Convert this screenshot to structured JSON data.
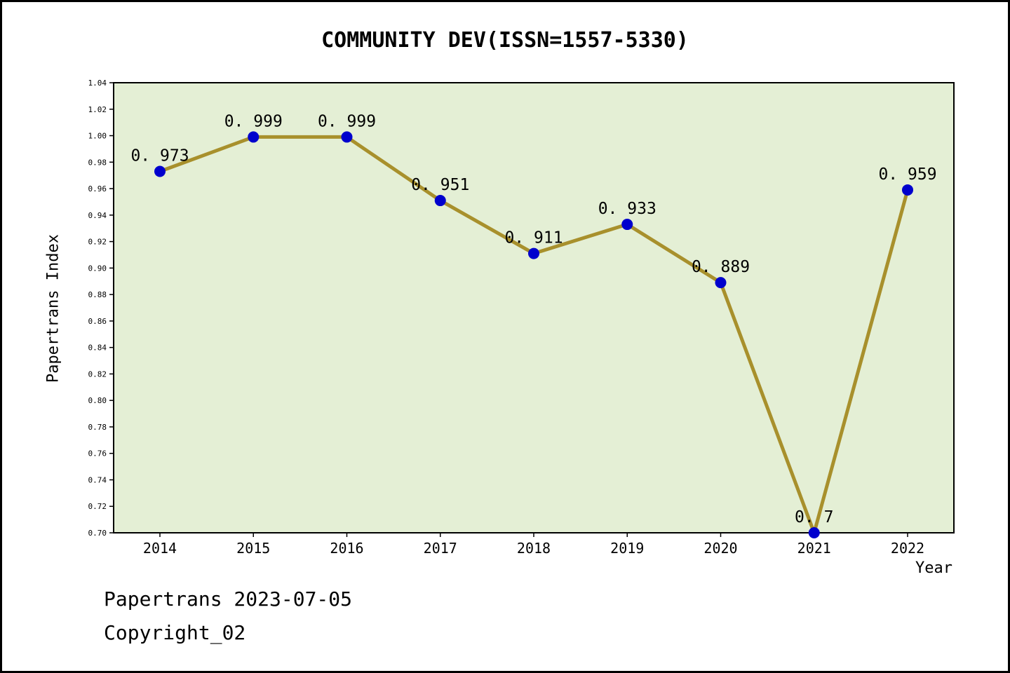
{
  "title": "COMMUNITY DEV(ISSN=1557-5330)",
  "footer": {
    "line1": "Papertrans 2023-07-05",
    "line2": "Copyright_02"
  },
  "chart_data": {
    "type": "line",
    "title": "COMMUNITY DEV(ISSN=1557-5330)",
    "xlabel": "Year",
    "ylabel": "Papertrans Index",
    "categories": [
      "2014",
      "2015",
      "2016",
      "2017",
      "2018",
      "2019",
      "2020",
      "2021",
      "2022"
    ],
    "values": [
      0.973,
      0.999,
      0.999,
      0.951,
      0.911,
      0.933,
      0.889,
      0.7,
      0.959
    ],
    "point_labels": [
      "0. 973",
      "0. 999",
      "0. 999",
      "0. 951",
      "0. 911",
      "0. 933",
      "0. 889",
      "0. 7",
      "0. 959"
    ],
    "ylim": [
      0.7,
      1.04
    ],
    "ytick_step": 0.02,
    "ytick_format_decimals": 2,
    "grid": false,
    "legend": false,
    "colors": {
      "line": "#a8902c",
      "marker": "#0000cd",
      "plot_bg": "#e4efd5",
      "border": "#000000",
      "page_bg": "#ffffff"
    }
  }
}
